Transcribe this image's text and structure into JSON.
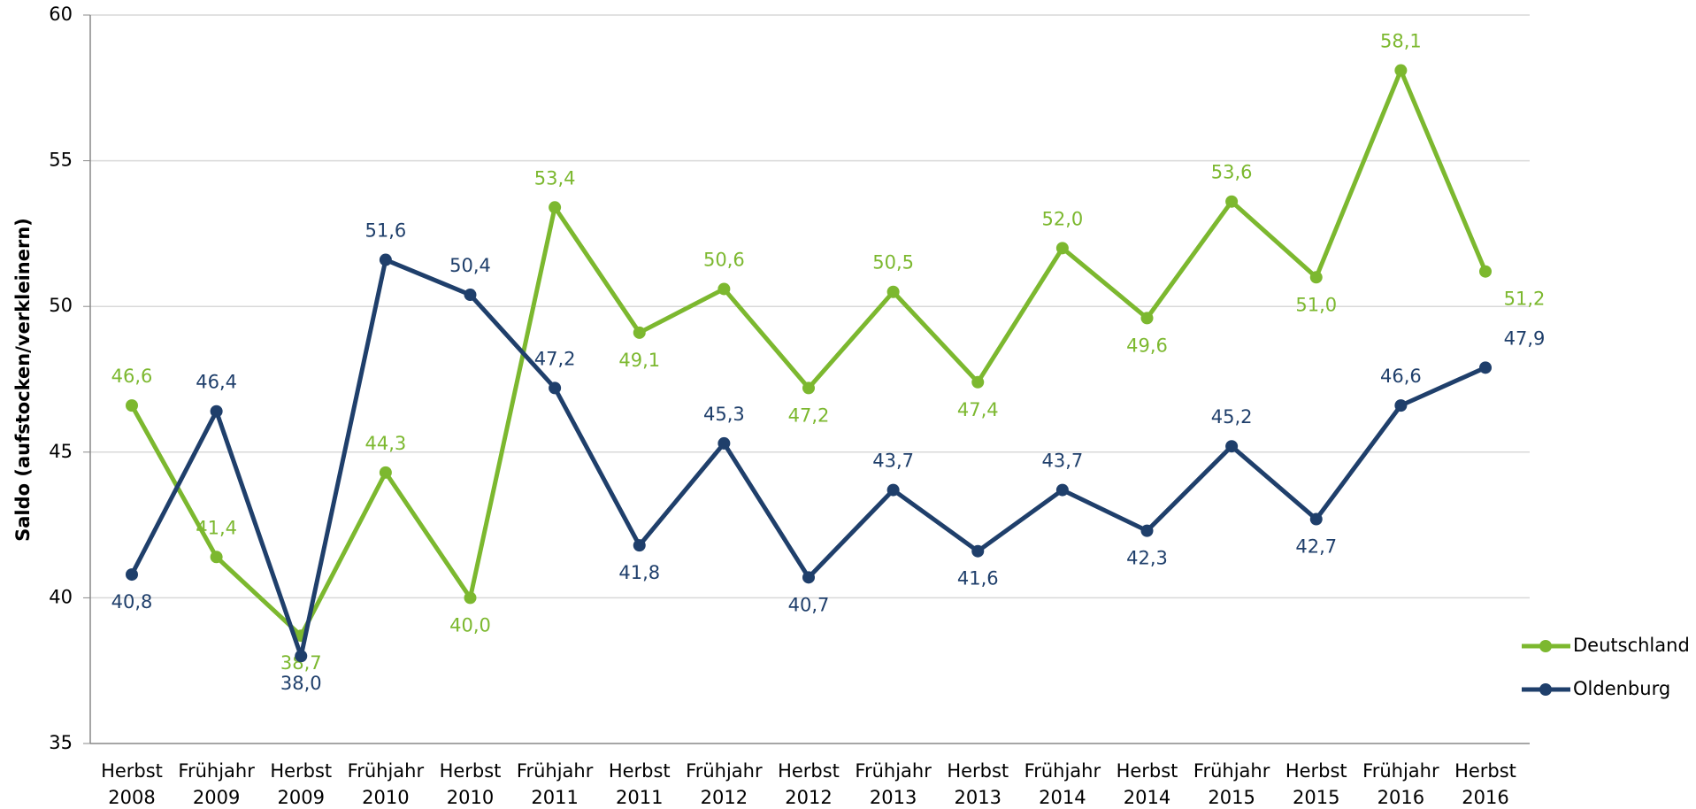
{
  "chart_data": {
    "type": "line",
    "y_label": "Saldo (aufstocken/verkleinern)",
    "categories": [
      [
        "Herbst",
        "2008"
      ],
      [
        "Frühjahr",
        "2009"
      ],
      [
        "Herbst",
        "2009"
      ],
      [
        "Frühjahr",
        "2010"
      ],
      [
        "Herbst",
        "2010"
      ],
      [
        "Frühjahr",
        "2011"
      ],
      [
        "Herbst",
        "2011"
      ],
      [
        "Frühjahr",
        "2012"
      ],
      [
        "Herbst",
        "2012"
      ],
      [
        "Frühjahr",
        "2013"
      ],
      [
        "Herbst",
        "2013"
      ],
      [
        "Frühjahr",
        "2014"
      ],
      [
        "Herbst",
        "2014"
      ],
      [
        "Frühjahr",
        "2015"
      ],
      [
        "Herbst",
        "2015"
      ],
      [
        "Frühjahr",
        "2016"
      ],
      [
        "Herbst",
        "2016"
      ]
    ],
    "series": [
      {
        "name": "Deutschland",
        "color": "#7cb82f",
        "values": [
          46.6,
          41.4,
          38.7,
          44.3,
          40.0,
          53.4,
          49.1,
          50.6,
          47.2,
          50.5,
          47.4,
          52.0,
          49.6,
          53.6,
          51.0,
          58.1,
          51.2
        ],
        "value_labels": [
          "46,6",
          "41,4",
          "38,7",
          "44,3",
          "40,0",
          "53,4",
          "49,1",
          "50,6",
          "47,2",
          "50,5",
          "47,4",
          "52,0",
          "49,6",
          "53,6",
          "51,0",
          "58,1",
          "51,2"
        ]
      },
      {
        "name": "Oldenburg",
        "color": "#1f3f6b",
        "values": [
          40.8,
          46.4,
          38.0,
          51.6,
          50.4,
          47.2,
          41.8,
          45.3,
          40.7,
          43.7,
          41.6,
          43.7,
          42.3,
          45.2,
          42.7,
          46.6,
          47.9
        ],
        "value_labels": [
          "40,8",
          "46,4",
          "38,0",
          "51,6",
          "50,4",
          "47,2",
          "41,8",
          "45,3",
          "40,7",
          "43,7",
          "41,6",
          "43,7",
          "42,3",
          "45,2",
          "42,7",
          "46,6",
          "47,9"
        ]
      }
    ],
    "ylim": [
      35,
      60
    ],
    "yticks": [
      35,
      40,
      45,
      50,
      55,
      60
    ],
    "grid": true,
    "legend": "right"
  }
}
